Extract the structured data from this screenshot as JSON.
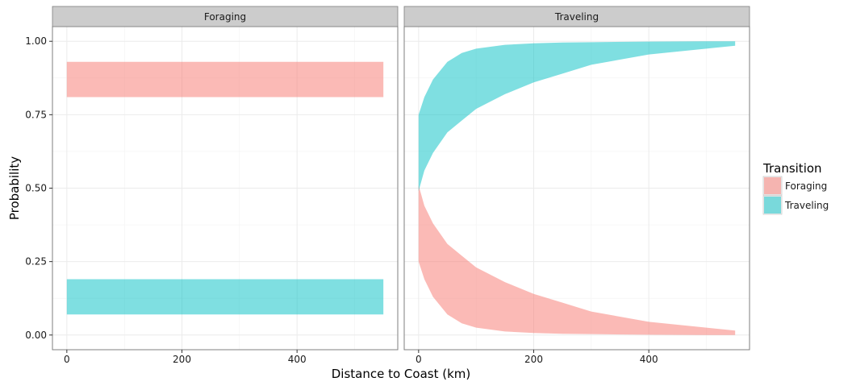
{
  "chart_data": {
    "type": "area",
    "xlabel": "Distance to Coast (km)",
    "ylabel": "Probability",
    "xlim": [
      -25,
      575
    ],
    "ylim": [
      -0.05,
      1.05
    ],
    "x_ticks": [
      0,
      200,
      400
    ],
    "y_ticks": [
      0.0,
      0.25,
      0.5,
      0.75,
      1.0
    ],
    "y_tick_labels": [
      "0.00",
      "0.25",
      "0.50",
      "0.75",
      "1.00"
    ],
    "grid": true,
    "legend": {
      "title": "Transition",
      "position": "right",
      "entries": [
        {
          "label": "Foraging",
          "color": "#F8766D"
        },
        {
          "label": "Traveling",
          "color": "#00BFC4"
        }
      ]
    },
    "panels": [
      {
        "title": "Foraging",
        "series": [
          {
            "name": "Foraging",
            "color": "#F8766D",
            "x": [
              0,
              550
            ],
            "lower": [
              0.81,
              0.81
            ],
            "upper": [
              0.93,
              0.93
            ]
          },
          {
            "name": "Traveling",
            "color": "#00BFC4",
            "x": [
              0,
              550
            ],
            "lower": [
              0.07,
              0.07
            ],
            "upper": [
              0.19,
              0.19
            ]
          }
        ]
      },
      {
        "title": "Traveling",
        "series": [
          {
            "name": "Foraging",
            "color": "#F8766D",
            "x": [
              0,
              10,
              25,
              50,
              75,
              100,
              150,
              200,
              250,
              300,
              400,
              500,
              550
            ],
            "lower": [
              0.25,
              0.19,
              0.13,
              0.07,
              0.04,
              0.025,
              0.012,
              0.007,
              0.004,
              0.003,
              0.001,
              0.0,
              0.0
            ],
            "upper": [
              0.51,
              0.44,
              0.38,
              0.31,
              0.27,
              0.23,
              0.18,
              0.14,
              0.11,
              0.08,
              0.045,
              0.025,
              0.015
            ]
          },
          {
            "name": "Traveling",
            "color": "#00BFC4",
            "x": [
              0,
              10,
              25,
              50,
              75,
              100,
              150,
              200,
              250,
              300,
              400,
              500,
              550
            ],
            "lower": [
              0.49,
              0.56,
              0.62,
              0.69,
              0.73,
              0.77,
              0.82,
              0.86,
              0.89,
              0.92,
              0.955,
              0.975,
              0.985
            ],
            "upper": [
              0.75,
              0.81,
              0.87,
              0.93,
              0.96,
              0.975,
              0.988,
              0.993,
              0.996,
              0.997,
              0.999,
              1.0,
              1.0
            ]
          }
        ]
      }
    ]
  }
}
